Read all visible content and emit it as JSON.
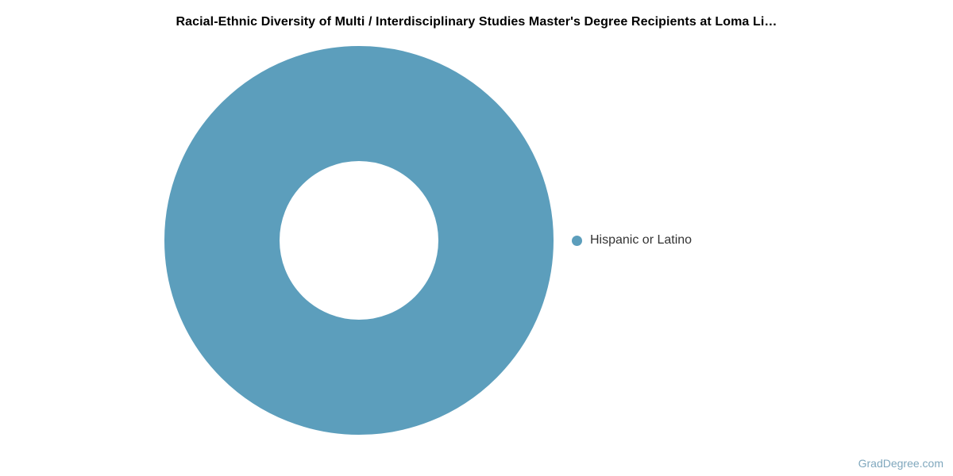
{
  "chart_data": {
    "type": "pie",
    "subtype": "donut",
    "title": "Racial-Ethnic Diversity of Multi / Interdisciplinary Studies Master's Degree Recipients at Loma Li…",
    "slices": [
      {
        "label": "Hispanic or Latino",
        "value": 100,
        "color": "#5c9ebc"
      }
    ],
    "unit": "percent",
    "inner_radius_pct": 41,
    "legend_position": "right",
    "background": "#ffffff"
  },
  "legend": {
    "items": [
      {
        "label": "Hispanic or Latino",
        "marker_color": "#5c9ebc"
      }
    ]
  },
  "watermark": {
    "text": "GradDegree.com",
    "color": "#7fa7bd"
  },
  "colors": {
    "title_text": "#000000",
    "legend_text": "#333333",
    "background": "#ffffff"
  }
}
